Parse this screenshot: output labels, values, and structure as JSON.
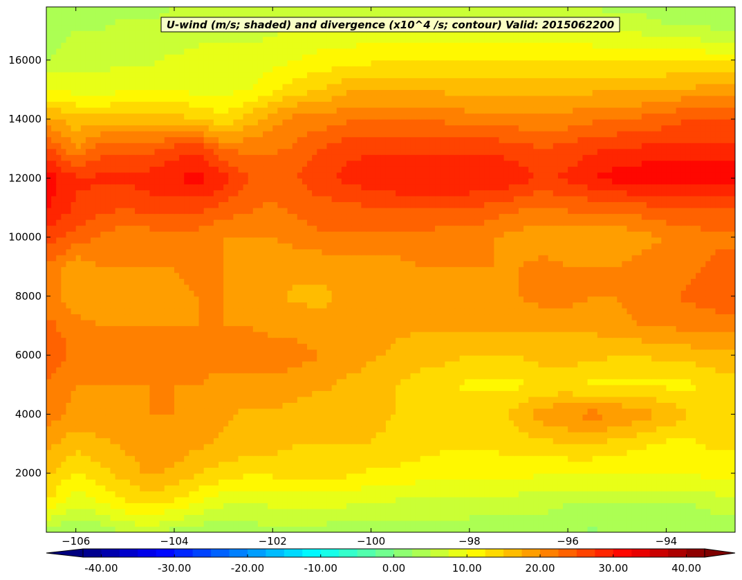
{
  "chart_data": {
    "type": "heatmap",
    "title": "U-wind (m/s; shaded) and divergence (x10^4 /s; contour) Valid: 2015062200",
    "xlabel": "",
    "ylabel": "",
    "xlim": [
      -106.6,
      -92.6
    ],
    "ylim": [
      0,
      17800
    ],
    "x_ticks": [
      -106,
      -104,
      -102,
      -100,
      -98,
      -96,
      -94
    ],
    "x_tick_labels": [
      "−106",
      "−104",
      "−102",
      "−100",
      "−98",
      "−96",
      "−94"
    ],
    "y_ticks": [
      2000,
      4000,
      6000,
      8000,
      10000,
      12000,
      14000,
      16000
    ],
    "y_tick_labels": [
      "2000",
      "4000",
      "6000",
      "8000",
      "10000",
      "12000",
      "14000",
      "16000"
    ],
    "grid": false,
    "colorbar": {
      "orientation": "horizontal",
      "min": -42.5,
      "max": 42.5,
      "ticks": [
        -40,
        -30,
        -20,
        -10,
        0,
        10,
        20,
        30,
        40
      ],
      "tick_labels": [
        "-40.00",
        "-30.00",
        "-20.00",
        "-10.00",
        "0.00",
        "10.00",
        "20.00",
        "30.00",
        "40.00"
      ],
      "extend": "both",
      "colormap": "jet"
    },
    "field_description": "U-wind speed shaded; jet maximum near 12000 (about 32 m/s); near-surface winds 2-10 m/s; top of domain 5-15 m/s",
    "x_grid": [
      -106.5,
      -106,
      -105.5,
      -105,
      -104.5,
      -104,
      -103.5,
      -103,
      -102.5,
      -102,
      -101.5,
      -101,
      -100.5,
      -100,
      -99.5,
      -99,
      -98.5,
      -98,
      -97.5,
      -97,
      -96.5,
      -96,
      -95.5,
      -95,
      -94.5,
      -94,
      -93.5,
      -93
    ],
    "y_grid": [
      0,
      1000,
      2000,
      3000,
      4000,
      5000,
      6000,
      7000,
      8000,
      9000,
      10000,
      11000,
      12000,
      13000,
      14000,
      15000,
      16000,
      17000,
      17800
    ],
    "z": [
      [
        3,
        2,
        3,
        5,
        6,
        4,
        3,
        3,
        4,
        4,
        4,
        4,
        3,
        3,
        3,
        3,
        3,
        3,
        2,
        3,
        3,
        3,
        2,
        3,
        3,
        3,
        3,
        3
      ],
      [
        12,
        8,
        10,
        12,
        13,
        12,
        10,
        8,
        7,
        8,
        8,
        8,
        8,
        7,
        7,
        7,
        7,
        7,
        7,
        6,
        6,
        5,
        5,
        5,
        5,
        5,
        5,
        6
      ],
      [
        15,
        12,
        14,
        16,
        18,
        17,
        15,
        14,
        13,
        13,
        13,
        13,
        13,
        12,
        12,
        11,
        11,
        11,
        11,
        11,
        10,
        10,
        10,
        10,
        10,
        10,
        10,
        11
      ],
      [
        18,
        16,
        17,
        18,
        19,
        19,
        18,
        17,
        16,
        16,
        15,
        15,
        15,
        15,
        14,
        14,
        13,
        13,
        13,
        14,
        14,
        15,
        15,
        14,
        13,
        12,
        12,
        13
      ],
      [
        21,
        19,
        19,
        19,
        20,
        20,
        19,
        18,
        17,
        17,
        17,
        16,
        16,
        16,
        15,
        15,
        14,
        14,
        14,
        16,
        19,
        20,
        21,
        20,
        19,
        17,
        15,
        14
      ],
      [
        22,
        20,
        20,
        20,
        20,
        20,
        20,
        19,
        19,
        19,
        18,
        18,
        17,
        16,
        15,
        14,
        13,
        12,
        12,
        12,
        13,
        13,
        12,
        12,
        12,
        12,
        12,
        13
      ],
      [
        24,
        22,
        21,
        21,
        22,
        22,
        21,
        21,
        21,
        22,
        21,
        20,
        19,
        18,
        17,
        16,
        16,
        15,
        15,
        15,
        16,
        16,
        16,
        15,
        15,
        16,
        16,
        17
      ],
      [
        23,
        21,
        20,
        20,
        20,
        20,
        20,
        20,
        20,
        19,
        19,
        18,
        18,
        18,
        18,
        18,
        18,
        18,
        18,
        18,
        18,
        18,
        18,
        19,
        20,
        20,
        21,
        21
      ],
      [
        21,
        18,
        19,
        19,
        19,
        19,
        20,
        20,
        19,
        18,
        17,
        17,
        18,
        18,
        19,
        19,
        19,
        19,
        19,
        20,
        21,
        21,
        20,
        20,
        21,
        22,
        23,
        24
      ],
      [
        22,
        18,
        20,
        20,
        20,
        20,
        21,
        20,
        19,
        18,
        18,
        18,
        19,
        19,
        19,
        20,
        20,
        20,
        20,
        20,
        21,
        20,
        20,
        20,
        21,
        22,
        22,
        23
      ],
      [
        26,
        24,
        22,
        21,
        21,
        21,
        21,
        20,
        20,
        20,
        21,
        22,
        22,
        22,
        22,
        22,
        21,
        21,
        20,
        19,
        18,
        18,
        18,
        18,
        19,
        20,
        21,
        22
      ],
      [
        30,
        27,
        26,
        25,
        26,
        26,
        26,
        24,
        23,
        22,
        23,
        24,
        24,
        25,
        25,
        25,
        25,
        25,
        24,
        23,
        22,
        23,
        23,
        23,
        24,
        25,
        25,
        25
      ],
      [
        31,
        28,
        28,
        28,
        29,
        30,
        31,
        29,
        25,
        24,
        25,
        27,
        28,
        29,
        30,
        30,
        30,
        30,
        30,
        29,
        27,
        28,
        30,
        31,
        32,
        32,
        32,
        32
      ],
      [
        25,
        20,
        24,
        24,
        24,
        26,
        27,
        22,
        22,
        22,
        23,
        25,
        27,
        27,
        27,
        27,
        27,
        27,
        27,
        26,
        25,
        26,
        27,
        28,
        28,
        28,
        28,
        28
      ],
      [
        18,
        16,
        16,
        16,
        16,
        16,
        15,
        13,
        16,
        19,
        21,
        21,
        22,
        22,
        22,
        22,
        22,
        21,
        21,
        21,
        21,
        21,
        22,
        22,
        23,
        24,
        25,
        25
      ],
      [
        10,
        9,
        8,
        10,
        10,
        10,
        9,
        9,
        10,
        12,
        14,
        15,
        17,
        17,
        17,
        17,
        17,
        17,
        17,
        17,
        17,
        17,
        17,
        17,
        17,
        18,
        18,
        19
      ],
      [
        5,
        6,
        7,
        7,
        7,
        8,
        8,
        8,
        8,
        9,
        10,
        11,
        11,
        12,
        12,
        12,
        12,
        12,
        12,
        12,
        12,
        12,
        12,
        12,
        12,
        12,
        12,
        12
      ],
      [
        4,
        5,
        5,
        6,
        6,
        6,
        7,
        7,
        7,
        7,
        8,
        8,
        8,
        9,
        9,
        9,
        9,
        9,
        9,
        9,
        8,
        8,
        8,
        7,
        7,
        6,
        6,
        5
      ],
      [
        3,
        3,
        4,
        4,
        4,
        5,
        5,
        5,
        5,
        5,
        6,
        6,
        6,
        6,
        6,
        6,
        6,
        6,
        6,
        6,
        6,
        5,
        5,
        4,
        4,
        3,
        3,
        3
      ]
    ]
  }
}
